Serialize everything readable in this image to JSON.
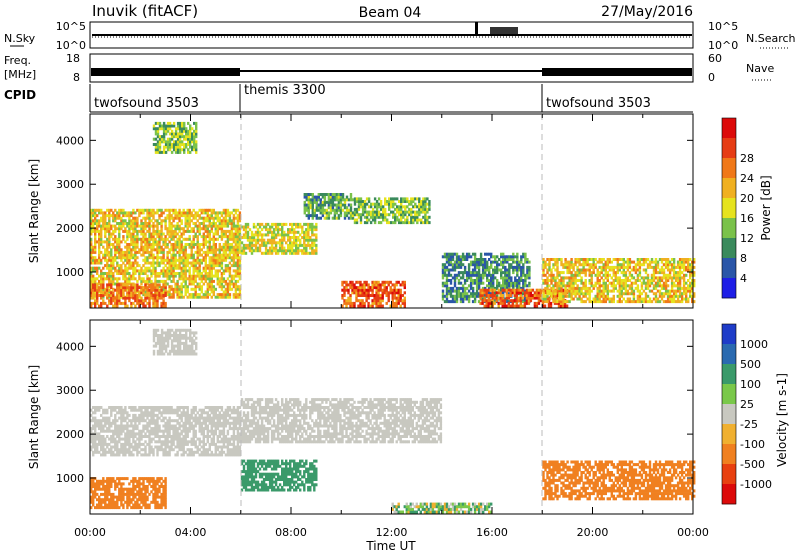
{
  "header": {
    "station": "Inuvik (fitACF)",
    "beam": "Beam 04",
    "date": "27/May/2016"
  },
  "noise_panel": {
    "left_label": "N.Sky",
    "right_label": "N.Search",
    "left_ticks": [
      "10^5",
      "10^0"
    ],
    "right_ticks": [
      "10^5",
      "10^0"
    ]
  },
  "freq_panel": {
    "left_label_1": "Freq.",
    "left_label_2": "[MHz]",
    "right_label": "Nave",
    "left_ticks": [
      "18",
      "8"
    ],
    "right_ticks": [
      "60",
      "0"
    ]
  },
  "cpid": {
    "label": "CPID",
    "segments": [
      {
        "name": "twofsound 3503",
        "start_hour": 0,
        "end_hour": 6
      },
      {
        "name": "themis 3300",
        "start_hour": 6,
        "end_hour": 18
      },
      {
        "name": "twofsound 3503",
        "start_hour": 18,
        "end_hour": 24
      }
    ]
  },
  "chart_data": [
    {
      "type": "heatmap",
      "panel": "power",
      "xlabel": "Time UT",
      "ylabel": "Slant Range [km]",
      "ylim": [
        180,
        4600
      ],
      "xlim": [
        0,
        24
      ],
      "y_ticks": [
        "1000",
        "2000",
        "3000",
        "4000"
      ],
      "colorbar": {
        "label": "Power [dB]",
        "ticks": [
          "4",
          "8",
          "12",
          "16",
          "20",
          "24",
          "28"
        ],
        "colors": [
          "#1e1ee6",
          "#2a56a8",
          "#3a8a5c",
          "#7ac24a",
          "#e6e31e",
          "#f0b020",
          "#f07818",
          "#e63c14",
          "#dc0a0a"
        ]
      },
      "echo_regions": [
        {
          "t0": 0.0,
          "t1": 6.0,
          "r0": 400,
          "r1": 2400,
          "value": 20
        },
        {
          "t0": 0.0,
          "t1": 3.0,
          "r0": 200,
          "r1": 700,
          "value": 26
        },
        {
          "t0": 2.5,
          "t1": 4.2,
          "r0": 3700,
          "r1": 4400,
          "value": 14
        },
        {
          "t0": 6.0,
          "t1": 9.0,
          "r0": 1400,
          "r1": 2100,
          "value": 18
        },
        {
          "t0": 8.5,
          "t1": 10.5,
          "r0": 2200,
          "r1": 2800,
          "value": 12
        },
        {
          "t0": 10.5,
          "t1": 13.5,
          "r0": 2100,
          "r1": 2700,
          "value": 14
        },
        {
          "t0": 10.0,
          "t1": 12.5,
          "r0": 200,
          "r1": 800,
          "value": 28
        },
        {
          "t0": 14.0,
          "t1": 17.5,
          "r0": 300,
          "r1": 1400,
          "value": 10
        },
        {
          "t0": 15.5,
          "t1": 19.0,
          "r0": 200,
          "r1": 600,
          "value": 28
        },
        {
          "t0": 18.0,
          "t1": 24.0,
          "r0": 300,
          "r1": 1300,
          "value": 20
        }
      ]
    },
    {
      "type": "heatmap",
      "panel": "velocity",
      "xlabel": "Time UT",
      "ylabel": "Slant Range [km]",
      "ylim": [
        180,
        4600
      ],
      "xlim": [
        0,
        24
      ],
      "y_ticks": [
        "1000",
        "2000",
        "3000",
        "4000"
      ],
      "x_ticks": [
        "00:00",
        "04:00",
        "08:00",
        "12:00",
        "16:00",
        "20:00",
        "00:00"
      ],
      "colorbar": {
        "label": "Velocity [m s-1]",
        "ticks": [
          "1000",
          "500",
          "100",
          "25",
          "-25",
          "-100",
          "-500",
          "-1000"
        ],
        "colors": [
          "#1e3cc8",
          "#2a6ab0",
          "#3a9a6a",
          "#7ac84a",
          "#c8c8c0",
          "#f0b030",
          "#f08020",
          "#e84010",
          "#dc0a0a"
        ]
      },
      "echo_regions": [
        {
          "t0": 0.0,
          "t1": 6.0,
          "r0": 1500,
          "r1": 2600,
          "value": 0
        },
        {
          "t0": 0.0,
          "t1": 3.0,
          "r0": 300,
          "r1": 1000,
          "value": -300
        },
        {
          "t0": 2.5,
          "t1": 4.2,
          "r0": 3800,
          "r1": 4400,
          "value": 0
        },
        {
          "t0": 6.0,
          "t1": 14.0,
          "r0": 1800,
          "r1": 2800,
          "value": 0
        },
        {
          "t0": 6.0,
          "t1": 9.0,
          "r0": 700,
          "r1": 1400,
          "value": 300
        },
        {
          "t0": 12.0,
          "t1": 16.0,
          "r0": 200,
          "r1": 400,
          "value": 60
        },
        {
          "t0": 18.0,
          "t1": 24.0,
          "r0": 500,
          "r1": 1400,
          "value": -300
        }
      ]
    }
  ]
}
